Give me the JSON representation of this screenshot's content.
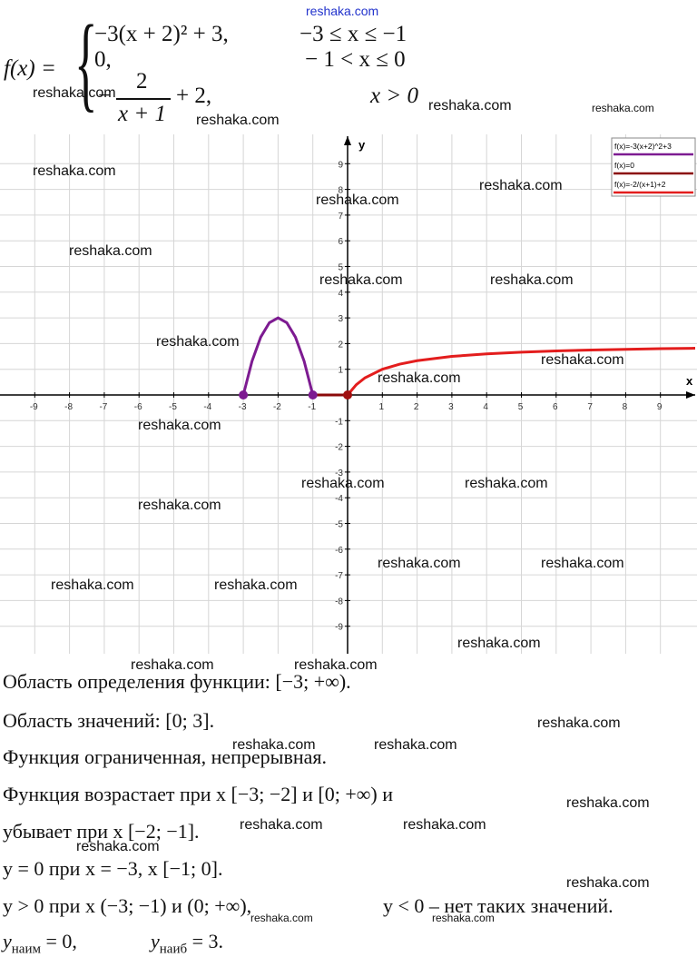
{
  "formula": {
    "lhs": "f(x) =",
    "rows": [
      {
        "expr": "−3(x + 2)² + 3,",
        "cond": "−3 ≤ x ≤ −1"
      },
      {
        "expr": "0,",
        "cond": "− 1 < x ≤ 0"
      },
      {
        "sign": "−",
        "num": "2",
        "den": "x + 1",
        "tail": "+ 2,",
        "cond": "x > 0"
      }
    ]
  },
  "chart_data": {
    "type": "line",
    "x_label": "x",
    "y_label": "y",
    "xlim": [
      -10,
      10
    ],
    "ylim": [
      -10,
      10
    ],
    "xticks": [
      -9,
      -8,
      -7,
      -6,
      -5,
      -4,
      -3,
      -2,
      -1,
      1,
      2,
      3,
      4,
      5,
      6,
      7,
      8,
      9
    ],
    "yticks": [
      -9,
      -8,
      -7,
      -6,
      -5,
      -4,
      -3,
      -2,
      -1,
      1,
      2,
      3,
      4,
      5,
      6,
      7,
      8,
      9
    ],
    "grid": true,
    "legend": "upper right",
    "series": [
      {
        "name": "f(x)=-3(x+2)^2+3",
        "color": "#7d1b91",
        "x": [
          -3,
          -2.75,
          -2.5,
          -2.25,
          -2,
          -1.75,
          -1.5,
          -1.25,
          -1
        ],
        "values": [
          0,
          1.3125,
          2.25,
          2.8125,
          3,
          2.8125,
          2.25,
          1.3125,
          0
        ]
      },
      {
        "name": "f(x)=0",
        "color": "#8b0a0a",
        "x": [
          -1,
          0
        ],
        "values": [
          0,
          0
        ]
      },
      {
        "name": "f(x)=-2/(x+1)+2",
        "color": "#e31d1d",
        "x": [
          0,
          0.25,
          0.5,
          1,
          1.5,
          2,
          3,
          4,
          5,
          6,
          7,
          8,
          9,
          10
        ],
        "values": [
          0,
          0.4,
          0.6667,
          1,
          1.2,
          1.3333,
          1.5,
          1.6,
          1.6667,
          1.7143,
          1.75,
          1.7778,
          1.8,
          1.8182
        ]
      }
    ],
    "points": [
      {
        "x": -3,
        "y": 0,
        "color": "#7d1b91"
      },
      {
        "x": -1,
        "y": 0,
        "color": "#7d1b91"
      },
      {
        "x": 0,
        "y": 0,
        "color": "#a01010"
      }
    ]
  },
  "lines": [
    "Область определения функции: [−3; +∞).",
    "Область значений: [0; 3].",
    "Функция ограниченная, непрерывная.",
    "Функция возрастает при x [−3; −2] и [0; +∞) и",
    "убывает при x [−2; −1].",
    "y = 0 при x = −3, x [−1; 0]."
  ],
  "sign_line": {
    "positive": "y > 0 при x (−3; −1) и (0; +∞),",
    "negative": "y < 0 – нет таких значений."
  },
  "extrema": [
    {
      "var": "y",
      "sub": "наим",
      "rest": "= 0,"
    },
    {
      "var": "y",
      "sub": "наиб",
      "rest": "= 3."
    }
  ],
  "watermark": "reshaka.com"
}
